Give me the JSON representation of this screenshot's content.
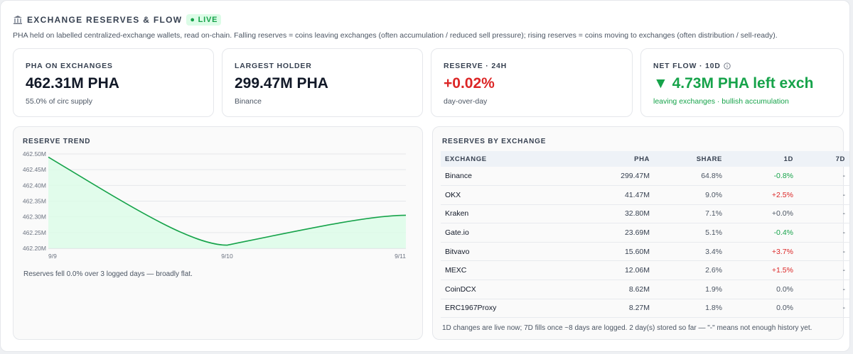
{
  "header": {
    "title": "EXCHANGE RESERVES & FLOW",
    "live_badge": "● LIVE",
    "description": "PHA held on labelled centralized-exchange wallets, read on-chain. Falling reserves = coins leaving exchanges (often accumulation / reduced sell pressure); rising reserves = coins moving to exchanges (often distribution / sell-ready)."
  },
  "cards": {
    "on_exchanges": {
      "label": "PHA ON EXCHANGES",
      "value": "462.31M PHA",
      "sub": "55.0% of circ supply"
    },
    "largest_holder": {
      "label": "LARGEST HOLDER",
      "value": "299.47M PHA",
      "sub": "Binance"
    },
    "reserve_24h": {
      "label": "RESERVE · 24H",
      "value": "+0.02%",
      "sub": "day-over-day",
      "color": "#dc2626"
    },
    "net_flow": {
      "label": "NET FLOW · 10D",
      "value": "▼ 4.73M PHA left exch",
      "sub": "leaving exchanges · bullish accumulation",
      "color": "#16a34a",
      "icon": "info-icon"
    }
  },
  "trend": {
    "title": "RESERVE TREND",
    "footnote": "Reserves fell 0.0% over 3 logged days — broadly flat."
  },
  "chart_data": {
    "type": "line",
    "x": [
      "9/9",
      "9/10",
      "9/11"
    ],
    "series": [
      {
        "values": [
          462.49,
          462.21,
          462.305
        ]
      }
    ],
    "ylim": [
      462.2,
      462.5
    ],
    "yticks": [
      "462.50M",
      "462.45M",
      "462.40M",
      "462.35M",
      "462.30M",
      "462.25M",
      "462.20M"
    ],
    "ytick_values": [
      462.5,
      462.45,
      462.4,
      462.35,
      462.3,
      462.25,
      462.2
    ],
    "line_color": "#16a34a",
    "fill_color": "#dcfce7",
    "grid": true
  },
  "exchanges": {
    "title": "RESERVES BY EXCHANGE",
    "columns": [
      "EXCHANGE",
      "PHA",
      "SHARE",
      "1D",
      "7D"
    ],
    "rows": [
      {
        "name": "Binance",
        "pha": "299.47M",
        "share": "64.8%",
        "d1": "-0.8%",
        "d1_tone": "green",
        "d7": "-"
      },
      {
        "name": "OKX",
        "pha": "41.47M",
        "share": "9.0%",
        "d1": "+2.5%",
        "d1_tone": "red",
        "d7": "-"
      },
      {
        "name": "Kraken",
        "pha": "32.80M",
        "share": "7.1%",
        "d1": "+0.0%",
        "d1_tone": "neutral",
        "d7": "-"
      },
      {
        "name": "Gate.io",
        "pha": "23.69M",
        "share": "5.1%",
        "d1": "-0.4%",
        "d1_tone": "green",
        "d7": "-"
      },
      {
        "name": "Bitvavo",
        "pha": "15.60M",
        "share": "3.4%",
        "d1": "+3.7%",
        "d1_tone": "red",
        "d7": "-"
      },
      {
        "name": "MEXC",
        "pha": "12.06M",
        "share": "2.6%",
        "d1": "+1.5%",
        "d1_tone": "red",
        "d7": "-"
      },
      {
        "name": "CoinDCX",
        "pha": "8.62M",
        "share": "1.9%",
        "d1": "0.0%",
        "d1_tone": "neutral",
        "d7": "-"
      },
      {
        "name": "ERC1967Proxy",
        "pha": "8.27M",
        "share": "1.8%",
        "d1": "0.0%",
        "d1_tone": "neutral",
        "d7": "-"
      }
    ],
    "footnote": "1D changes are live now; 7D fills once ~8 days are logged. 2 day(s) stored so far — \"-\" means not enough history yet."
  }
}
